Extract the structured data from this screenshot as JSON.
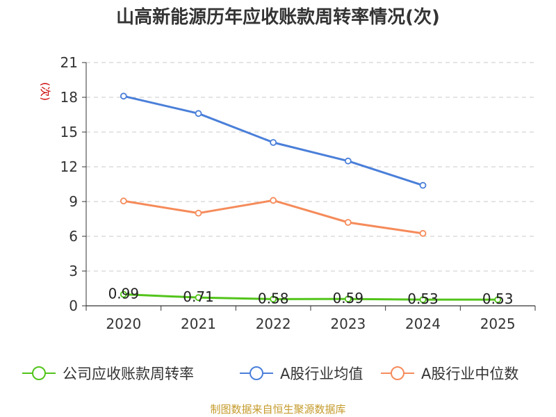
{
  "chart_data": {
    "type": "line",
    "title": "山高新能源历年应收账款周转率情况(次)",
    "ylabel": "(次)",
    "xlabel": "",
    "ylim": [
      0,
      21
    ],
    "yticks": [
      0,
      3,
      6,
      9,
      12,
      15,
      18,
      21
    ],
    "categories": [
      "2020",
      "2021",
      "2022",
      "2023",
      "2024",
      "2025"
    ],
    "series": [
      {
        "name": "公司应收账款周转率",
        "color": "#52c41a",
        "values": [
          0.99,
          0.71,
          0.58,
          0.59,
          0.53,
          0.53
        ],
        "labels": [
          "0.99",
          "0.71",
          "0.58",
          "0.59",
          "0.53",
          "0.53"
        ]
      },
      {
        "name": "A股行业均值",
        "color": "#4a7fd9",
        "values": [
          18.1,
          16.6,
          14.1,
          12.5,
          10.4,
          null
        ]
      },
      {
        "name": "A股行业中位数",
        "color": "#f58b5a",
        "values": [
          9.05,
          8.0,
          9.1,
          7.2,
          6.25,
          null
        ]
      }
    ],
    "grid": true,
    "legend_position": "bottom",
    "source": "制图数据来自恒生聚源数据库"
  }
}
